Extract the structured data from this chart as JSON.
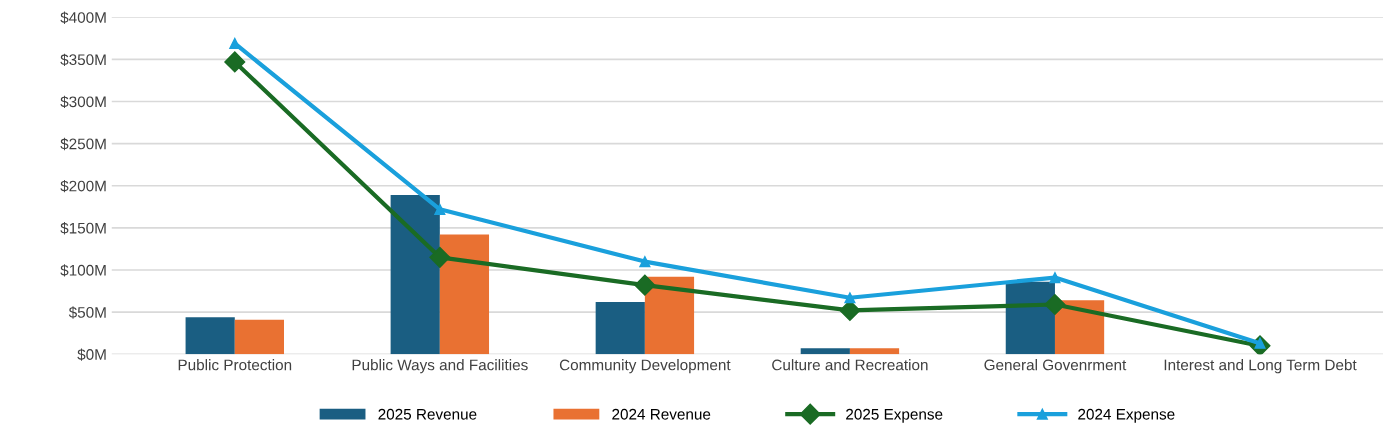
{
  "chart_data": {
    "type": "bar",
    "categories": [
      "Public Protection",
      "Public Ways and Facilities",
      "Community Development",
      "Culture and Recreation",
      "General Govenrment",
      "Interest and Long Term Debt"
    ],
    "series": [
      {
        "name": "2025 Revenue",
        "color": "#1a5e82",
        "values": [
          44,
          189,
          62,
          7,
          86,
          null
        ]
      },
      {
        "name": "2024 Revenue",
        "color": "#e97132",
        "values": [
          41,
          142,
          92,
          7,
          64,
          null
        ]
      },
      {
        "name": "2025 Expense",
        "type": "line",
        "marker": "diamond",
        "color": "#1a6b24",
        "values": [
          347,
          115,
          82,
          52,
          59,
          10
        ]
      },
      {
        "name": "2024 Expense",
        "type": "line",
        "marker": "triangle",
        "color": "#1aa0dc",
        "values": [
          369,
          172,
          110,
          67,
          91,
          13
        ]
      }
    ],
    "ylim": [
      0,
      400
    ],
    "yticks": [
      {
        "value": 0,
        "label": "$0M"
      },
      {
        "value": 50,
        "label": "$50M"
      },
      {
        "value": 100,
        "label": "$100M"
      },
      {
        "value": 150,
        "label": "$150M"
      },
      {
        "value": 200,
        "label": "$200M"
      },
      {
        "value": 250,
        "label": "$250M"
      },
      {
        "value": 300,
        "label": "$300M"
      },
      {
        "value": 350,
        "label": "$350M"
      },
      {
        "value": 400,
        "label": "$400M"
      }
    ],
    "grid": "y",
    "legend": "bottom"
  }
}
